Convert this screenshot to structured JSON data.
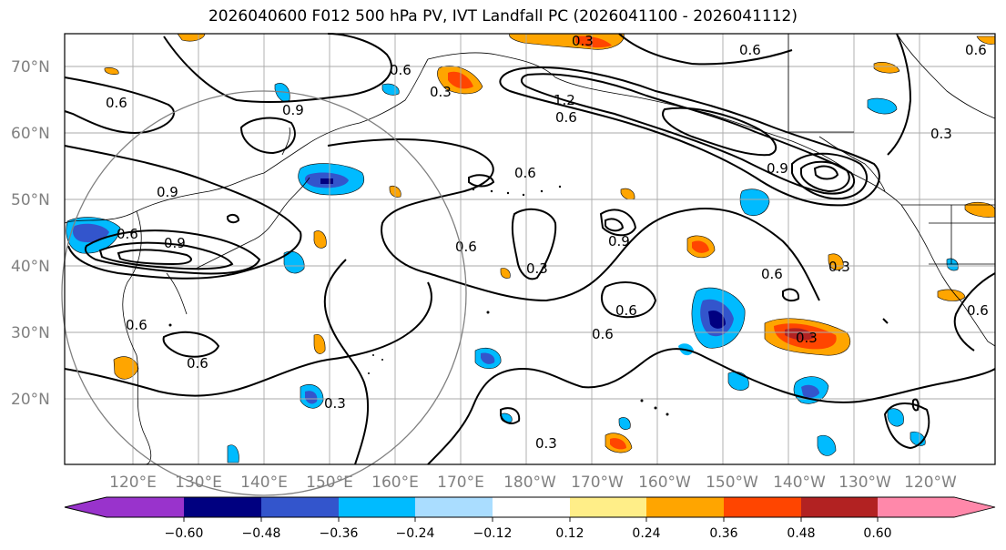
{
  "title": "2026040600 F012 500 hPa PV, IVT Landfall PC (2026041100 - 2026041112)",
  "map": {
    "lat_labels": [
      "70°N",
      "60°N",
      "50°N",
      "40°N",
      "30°N",
      "20°N"
    ],
    "lon_labels": [
      "120°E",
      "130°E",
      "140°E",
      "150°E",
      "160°E",
      "170°E",
      "180°W",
      "170°W",
      "160°W",
      "150°W",
      "140°W",
      "130°W",
      "120°W"
    ],
    "contour_labels": [
      "0.3",
      "0.6",
      "0.9",
      "1.2",
      "0.6",
      "0.3",
      "0.6",
      "0.9",
      "0.6",
      "0.9",
      "0.6",
      "0.6",
      "0.3",
      "0.6",
      "0.9",
      "0.6",
      "0.6",
      "0.6",
      "0.3",
      "0.3",
      "0.6",
      "0.3",
      "0.9",
      "0.6",
      "0.3",
      "0.3",
      "0.6",
      "0.6"
    ]
  },
  "colorbar": {
    "tick_labels": [
      "−0.60",
      "−0.48",
      "−0.36",
      "−0.24",
      "−0.12",
      "0.12",
      "0.24",
      "0.36",
      "0.48",
      "0.60"
    ],
    "colors": [
      "#9933cc",
      "#000080",
      "#3355cc",
      "#00bbff",
      "#aaddff",
      "#ffffff",
      "#ffee88",
      "#ffa500",
      "#ff4500",
      "#b22222",
      "#ff88aa"
    ]
  }
}
